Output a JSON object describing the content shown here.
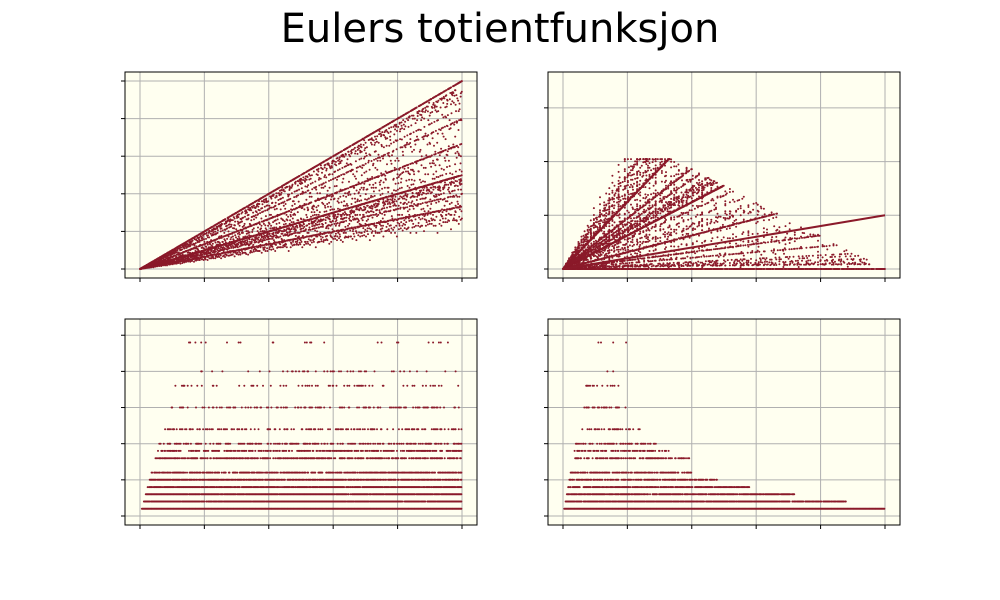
{
  "figure": {
    "title": "Eulers totientfunksjon"
  },
  "colors": {
    "background": "#ffffff",
    "panel_background": "#fffff0",
    "grid": "#b0b0b0",
    "point": "#8b1a2a",
    "frame": "#000000"
  },
  "chart_data": [
    {
      "type": "scatter",
      "panel": "top-left",
      "title": "",
      "xlabel": "",
      "ylabel": "",
      "x_domain": [
        1,
        5000
      ],
      "ylim": [
        0,
        5000
      ],
      "tick_labels_visible": false,
      "grid": true,
      "x_gridlines": [
        1000,
        2000,
        3000,
        4000,
        5000
      ],
      "y_gridlines": [
        1000,
        2000,
        3000,
        4000,
        5000
      ],
      "function": "y = phi(n), plotted against n",
      "series": [
        {
          "values_note": "phi(n) for n = 1..5000",
          "marker": "dot"
        }
      ],
      "upper_envelope": {
        "x": [
          1,
          5000
        ],
        "y": [
          1,
          4999
        ]
      }
    },
    {
      "type": "scatter",
      "panel": "top-right",
      "title": "",
      "xlabel": "",
      "ylabel": "",
      "x_domain": [
        1,
        5000
      ],
      "ylim": [
        0,
        3500
      ],
      "tick_labels_visible": false,
      "grid": true,
      "x_gridlines": [
        1000,
        2000,
        3000,
        4000,
        5000
      ],
      "y_gridlines": [
        1000,
        2000,
        3000
      ],
      "function": "x = phi(n), y = n restricted to values below 8 phi(n)",
      "series": [
        {
          "values_note": "phi(n) for n = 1..5000, mirrored by axis",
          "marker": "dot"
        }
      ]
    },
    {
      "type": "scatter",
      "panel": "bottom-left",
      "title": "",
      "xlabel": "",
      "ylabel": "",
      "x_domain": [
        1,
        5000
      ],
      "ylim": [
        0,
        26
      ],
      "tick_labels_visible": false,
      "grid": true,
      "x_gridlines": [
        1000,
        2000,
        3000,
        4000,
        5000
      ],
      "y_gridlines": [
        5,
        10,
        15,
        20,
        25
      ],
      "function": "y = n / phi(n) scaled ratio, banded values",
      "series": [
        {
          "values_note": "ratio bands for n = 1..5000",
          "marker": "dot"
        }
      ],
      "bands": [
        {
          "y": 1,
          "density": 1.0
        },
        {
          "y": 2,
          "density": 0.95
        },
        {
          "y": 3,
          "density": 0.95
        },
        {
          "y": 4,
          "density": 0.9
        },
        {
          "y": 5,
          "density": 0.85
        },
        {
          "y": 6,
          "density": 0.7
        },
        {
          "y": 8,
          "density": 0.6
        },
        {
          "y": 9,
          "density": 0.5
        },
        {
          "y": 10,
          "density": 0.35
        },
        {
          "y": 12,
          "density": 0.3
        },
        {
          "y": 15,
          "density": 0.25
        },
        {
          "y": 18,
          "density": 0.12
        },
        {
          "y": 20,
          "density": 0.1
        },
        {
          "y": 24,
          "density": 0.06
        }
      ]
    },
    {
      "type": "scatter",
      "panel": "bottom-right",
      "title": "",
      "xlabel": "",
      "ylabel": "",
      "x_domain": [
        1,
        5000
      ],
      "ylim": [
        0,
        26
      ],
      "tick_labels_visible": false,
      "grid": true,
      "x_gridlines": [
        1000,
        2000,
        3000,
        4000,
        5000
      ],
      "y_gridlines": [
        5,
        10,
        15,
        20,
        25
      ],
      "function": "ratio bands plotted against phi(n)",
      "series": [
        {
          "values_note": "ratio bands against phi(n), n = 1..5000",
          "marker": "dot"
        }
      ],
      "bands": [
        {
          "y": 1,
          "x_max": 5000,
          "density": 1.0
        },
        {
          "y": 2,
          "x_max": 4400,
          "density": 0.9
        },
        {
          "y": 3,
          "x_max": 3600,
          "density": 0.85
        },
        {
          "y": 4,
          "x_max": 2900,
          "density": 0.8
        },
        {
          "y": 5,
          "x_max": 2400,
          "density": 0.7
        },
        {
          "y": 6,
          "x_max": 2000,
          "density": 0.6
        },
        {
          "y": 8,
          "x_max": 2000,
          "density": 0.5
        },
        {
          "y": 9,
          "x_max": 1700,
          "density": 0.45
        },
        {
          "y": 10,
          "x_max": 1500,
          "density": 0.4
        },
        {
          "y": 12,
          "x_max": 1200,
          "density": 0.35
        },
        {
          "y": 15,
          "x_max": 1000,
          "density": 0.3
        },
        {
          "y": 18,
          "x_max": 900,
          "density": 0.2
        },
        {
          "y": 20,
          "x_max": 1000,
          "density": 0.12
        },
        {
          "y": 24,
          "x_max": 1000,
          "density": 0.08
        }
      ]
    }
  ]
}
